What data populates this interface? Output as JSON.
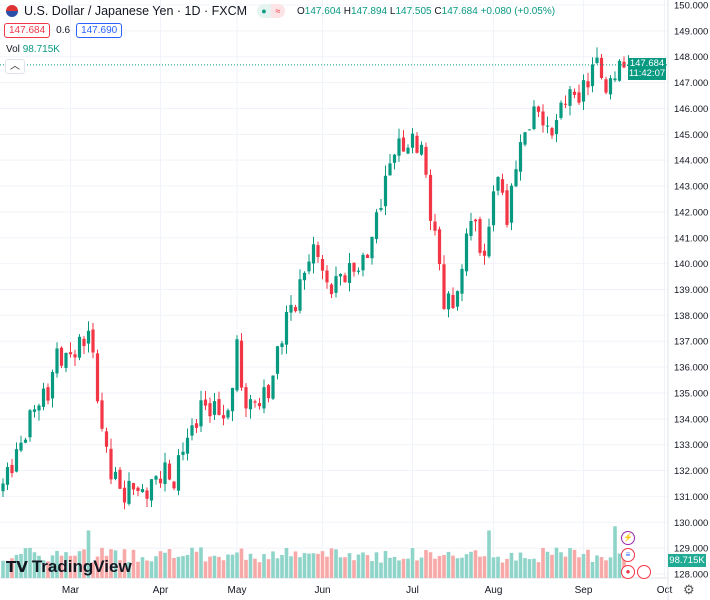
{
  "header": {
    "symbol_title": "U.S. Dollar / Japanese Yen · 1D · FXCM",
    "open_label": "O",
    "open": "147.604",
    "high_label": "H",
    "high": "147.894",
    "low_label": "L",
    "low": "147.505",
    "close_label": "C",
    "close": "147.684",
    "change": "+0.080 (+0.05%)",
    "market_status_icon": "dot-icon",
    "sell_price": "147.684",
    "spread": "0.6",
    "buy_price": "147.690"
  },
  "volume": {
    "label": "Vol",
    "value": "98.715K"
  },
  "last_price": {
    "price": "147.684",
    "countdown": "11:42:07"
  },
  "logo": "TradingView",
  "colors": {
    "up": "#089981",
    "down": "#f23645",
    "vol_up": "#8fd4c8",
    "vol_down": "#f7a9a7"
  },
  "chart_data": {
    "type": "candlestick",
    "y_ticks": [
      "150.000",
      "149.000",
      "148.000",
      "147.000",
      "146.000",
      "145.000",
      "144.000",
      "143.000",
      "142.000",
      "141.000",
      "140.000",
      "139.000",
      "138.000",
      "137.000",
      "136.000",
      "135.000",
      "134.000",
      "133.000",
      "132.000",
      "131.000",
      "130.000",
      "129.000",
      "128.000"
    ],
    "ylim": [
      128,
      150
    ],
    "x_labels": [
      {
        "label": "Mar",
        "day": 15
      },
      {
        "label": "Apr",
        "day": 35
      },
      {
        "label": "May",
        "day": 52
      },
      {
        "label": "Jun",
        "day": 71
      },
      {
        "label": "Jul",
        "day": 91
      },
      {
        "label": "Aug",
        "day": 109
      },
      {
        "label": "Sep",
        "day": 129
      },
      {
        "label": "Oct",
        "day": 147
      }
    ],
    "close_keypoints": [
      [
        0,
        131.5
      ],
      [
        4,
        133
      ],
      [
        7,
        134.5
      ],
      [
        10,
        135
      ],
      [
        12,
        136.5
      ],
      [
        14,
        136.3
      ],
      [
        18,
        137
      ],
      [
        19,
        137.5
      ],
      [
        21,
        135
      ],
      [
        22,
        133.5
      ],
      [
        24,
        132
      ],
      [
        27,
        131
      ],
      [
        29,
        131.5
      ],
      [
        31,
        131
      ],
      [
        33,
        131.5
      ],
      [
        36,
        132
      ],
      [
        38,
        131.5
      ],
      [
        40,
        133
      ],
      [
        42,
        133.5
      ],
      [
        44,
        134.5
      ],
      [
        48,
        134.3
      ],
      [
        50,
        134
      ],
      [
        52,
        137
      ],
      [
        53,
        135
      ],
      [
        55,
        134.5
      ],
      [
        59,
        135
      ],
      [
        61,
        136.5
      ],
      [
        63,
        138
      ],
      [
        65,
        138.5
      ],
      [
        68,
        140.3
      ],
      [
        70,
        140.5
      ],
      [
        72,
        139
      ],
      [
        75,
        139.5
      ],
      [
        78,
        139.8
      ],
      [
        80,
        140
      ],
      [
        82,
        141
      ],
      [
        84,
        142.5
      ],
      [
        87,
        144.5
      ],
      [
        89,
        144.5
      ],
      [
        91,
        144.7
      ],
      [
        93,
        144.5
      ],
      [
        95,
        142
      ],
      [
        97,
        140
      ],
      [
        98,
        138.5
      ],
      [
        100,
        138.5
      ],
      [
        102,
        139.5
      ],
      [
        103,
        141.5
      ],
      [
        105,
        141.5
      ],
      [
        107,
        140
      ],
      [
        109,
        143
      ],
      [
        111,
        143
      ],
      [
        112,
        141.5
      ],
      [
        114,
        144
      ],
      [
        117,
        145.5
      ],
      [
        119,
        146
      ],
      [
        121,
        145
      ],
      [
        123,
        145.5
      ],
      [
        125,
        146.5
      ],
      [
        128,
        146.5
      ],
      [
        130,
        147
      ],
      [
        131,
        147.8
      ],
      [
        133,
        147.5
      ],
      [
        134,
        146.5
      ],
      [
        136,
        147.5
      ],
      [
        139,
        147.68
      ]
    ],
    "volume_unit": "K",
    "volume_spikes": [
      [
        19,
        170
      ],
      [
        108,
        170
      ],
      [
        136,
        185
      ]
    ],
    "last_volume": 98.715
  },
  "settings_icon": "gear-icon"
}
